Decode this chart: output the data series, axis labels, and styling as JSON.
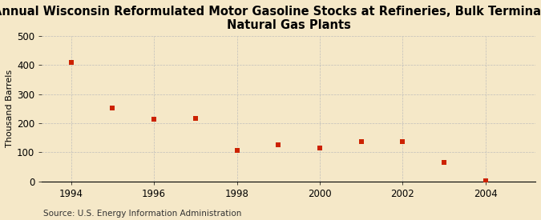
{
  "title_line1": "Annual Wisconsin Reformulated Motor Gasoline Stocks at Refineries, Bulk Terminals, and",
  "title_line2": "Natural Gas Plants",
  "ylabel": "Thousand Barrels",
  "source": "Source: U.S. Energy Information Administration",
  "x": [
    1994,
    1995,
    1996,
    1997,
    1998,
    1999,
    2000,
    2001,
    2002,
    2003,
    2004
  ],
  "y": [
    408,
    252,
    213,
    215,
    107,
    126,
    116,
    138,
    137,
    65,
    2
  ],
  "marker_color": "#cc2200",
  "marker": "s",
  "marker_size": 4,
  "xlim": [
    1993.3,
    2005.2
  ],
  "ylim": [
    0,
    500
  ],
  "yticks": [
    0,
    100,
    200,
    300,
    400,
    500
  ],
  "xticks": [
    1994,
    1996,
    1998,
    2000,
    2002,
    2004
  ],
  "background_color": "#f5e8c8",
  "grid_color": "#bbbbbb",
  "title_fontsize": 10.5,
  "axis_fontsize": 8.5,
  "source_fontsize": 7.5,
  "ylabel_fontsize": 8
}
